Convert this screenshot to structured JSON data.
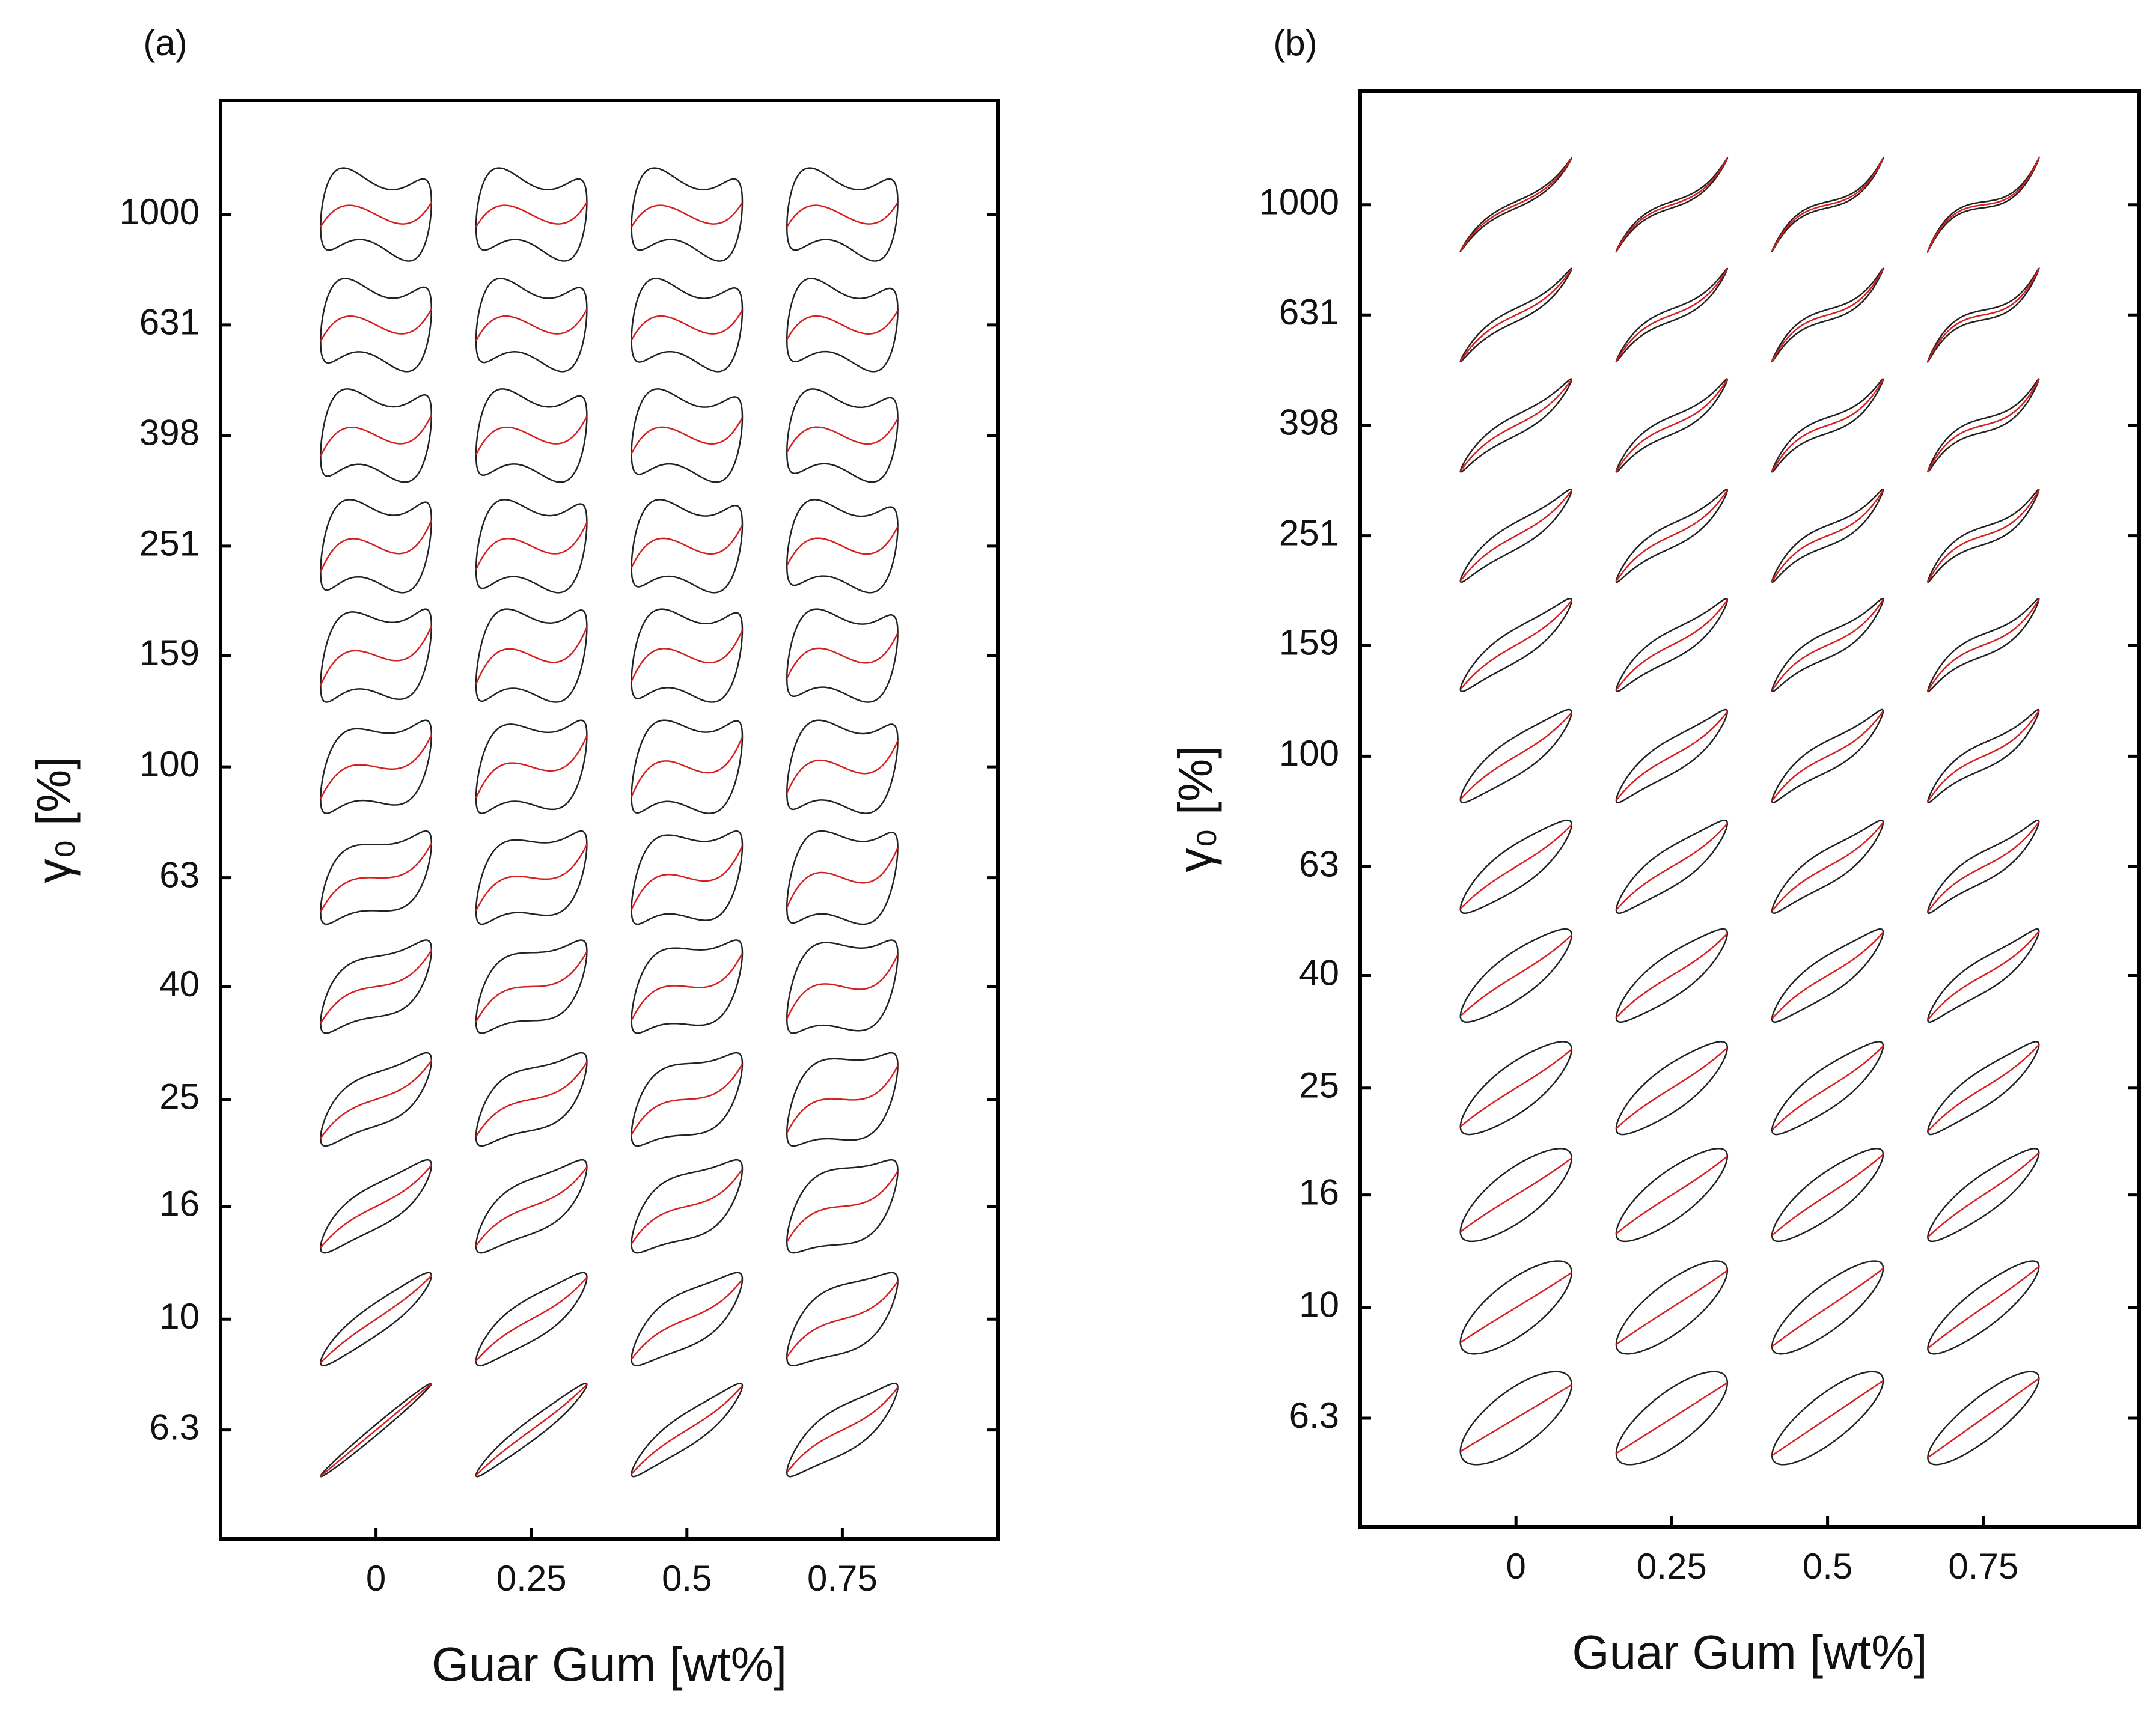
{
  "chart_data": [
    {
      "type": "pipkin",
      "panel": "(a)",
      "xlabel": "Guar Gum [wt%]",
      "ylabel": "γ₀ [%]",
      "xticks": [
        0,
        0.25,
        0.5,
        0.75
      ],
      "xlim": [
        -0.25,
        1.0
      ],
      "yticks": [
        6.3,
        10,
        16,
        25,
        40,
        63,
        100,
        159,
        251,
        398,
        631,
        1000
      ],
      "ylim": [
        4,
        1610
      ],
      "ylog": true,
      "loop_color": "#222222",
      "line_color": "#d62020"
    },
    {
      "type": "pipkin",
      "panel": "(b)",
      "xlabel": "Guar Gum [wt%]",
      "ylabel": "γ₀ [%]",
      "xticks": [
        0,
        0.25,
        0.5,
        0.75
      ],
      "xlim": [
        -0.25,
        1.0
      ],
      "yticks": [
        6.3,
        10,
        16,
        25,
        40,
        63,
        100,
        159,
        251,
        398,
        631,
        1000
      ],
      "ylim": [
        4,
        1610
      ],
      "ylog": true,
      "loop_color": "#222222",
      "line_color": "#d62020"
    }
  ]
}
